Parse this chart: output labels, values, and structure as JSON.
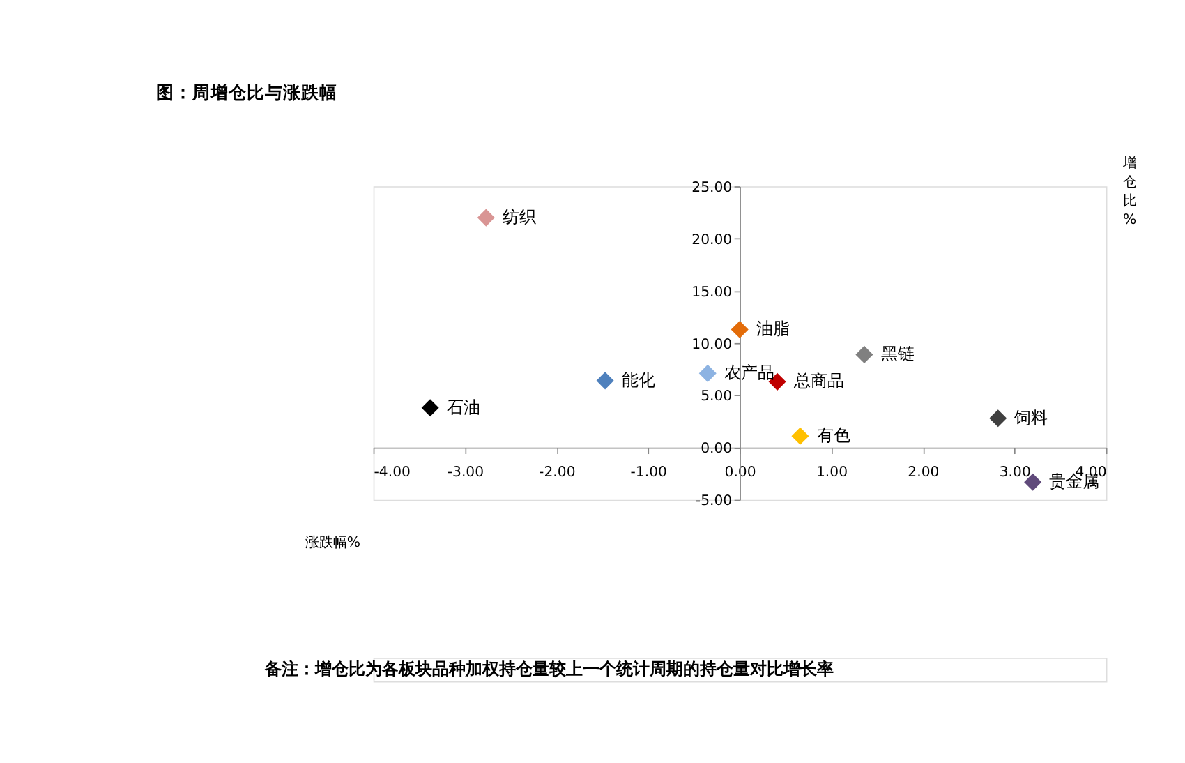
{
  "chart_data": {
    "type": "scatter",
    "title": "图：周增仓比与涨跌幅",
    "xlabel": "涨跌幅%",
    "ylabel": "增仓比%",
    "value_labels": [
      "纺织",
      "油脂",
      "黑链",
      "能化",
      "农产品",
      "总商品",
      "石油",
      "有色",
      "饲料",
      "贵金属"
    ],
    "x": [
      -2.77,
      0.0,
      1.36,
      -1.47,
      -0.35,
      0.41,
      -3.38,
      0.66,
      2.82,
      3.2
    ],
    "values": [
      22.0,
      11.3,
      8.9,
      6.4,
      7.1,
      6.3,
      3.8,
      1.1,
      2.8,
      -3.3
    ],
    "colors": [
      "#d99594",
      "#e36c09",
      "#808080",
      "#4f81bd",
      "#8db3e2",
      "#c00000",
      "#000000",
      "#ffc000",
      "#404040",
      "#604a7b"
    ],
    "xlim": [
      -4,
      4
    ],
    "ylim": [
      -5,
      25
    ],
    "xticks": [
      {
        "value": -4,
        "label": "-4.00"
      },
      {
        "value": -3,
        "label": "-3.00"
      },
      {
        "value": -2,
        "label": "-2.00"
      },
      {
        "value": -1,
        "label": "-1.00"
      },
      {
        "value": 0,
        "label": "0.00"
      },
      {
        "value": 1,
        "label": "1.00"
      },
      {
        "value": 2,
        "label": "2.00"
      },
      {
        "value": 3,
        "label": "3.00"
      },
      {
        "value": 4,
        "label": "4.00"
      }
    ],
    "yticks": [
      {
        "value": -5,
        "label": "-5.00"
      },
      {
        "value": 0,
        "label": "0.00"
      },
      {
        "value": 5,
        "label": "5.00"
      },
      {
        "value": 10,
        "label": "10.00"
      },
      {
        "value": 15,
        "label": "15.00"
      },
      {
        "value": 20,
        "label": "20.00"
      },
      {
        "value": 25,
        "label": "25.00"
      }
    ],
    "marker": "diamond",
    "grid": false,
    "legend": false,
    "annotations": [
      "备注：增仓比为各板块品种加权持仓量较上一个统计周期的持仓量对比增长率"
    ]
  }
}
